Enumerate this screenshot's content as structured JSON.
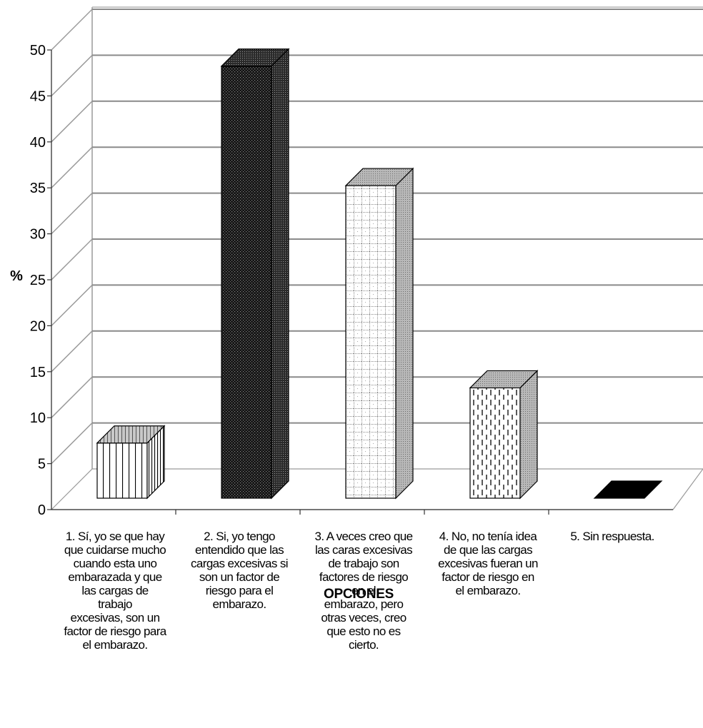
{
  "chart_data": {
    "type": "bar",
    "categories": [
      "1. Sí, yo se que hay que cuidarse mucho cuando esta uno embarazada y que las cargas de trabajo excesivas, son un factor de riesgo para el embarazo.",
      "2.  Si, yo tengo entendido que las cargas excesivas si son un factor de riesgo para el embarazo.",
      "3. A veces creo que las caras excesivas de trabajo son factores de riesgo en el embarazo, pero otras veces, creo que esto no es cierto.",
      "4. No, no tenía idea de que las cargas excesivas fueran un factor de riesgo en el embarazo.",
      "5. Sin respuesta."
    ],
    "category_lines": [
      [
        "1. Sí, yo se que hay",
        "que cuidarse mucho",
        "cuando esta uno",
        "embarazada y que",
        "las cargas de",
        "trabajo",
        "excesivas, son un",
        "factor de riesgo para",
        "el embarazo."
      ],
      [
        "2.  Si, yo tengo",
        "entendido que las",
        "cargas excesivas si",
        "son un factor de",
        "riesgo para el",
        "embarazo."
      ],
      [
        "3. A veces creo que",
        "las caras excesivas",
        "de trabajo son",
        "factores de riesgo",
        "en el",
        "embarazo, pero",
        "otras veces, creo",
        "que esto no es",
        "cierto."
      ],
      [
        "4. No, no tenía idea",
        "de que las cargas",
        "excesivas fueran un",
        "factor de riesgo en",
        "el embarazo."
      ],
      [
        "5. Sin respuesta."
      ]
    ],
    "values": [
      6,
      47,
      34,
      12,
      0
    ],
    "ylim": [
      0,
      50
    ],
    "yticks": [
      0,
      5,
      10,
      15,
      20,
      25,
      30,
      35,
      40,
      45,
      50
    ],
    "ylabel": "%",
    "xlabel": "OPCIONES",
    "grid": true,
    "legend": "none",
    "bar_fills": [
      "vertical-stripes",
      "dark-dots",
      "light-dotted-grid",
      "dashed-lines",
      "solid-black"
    ]
  }
}
